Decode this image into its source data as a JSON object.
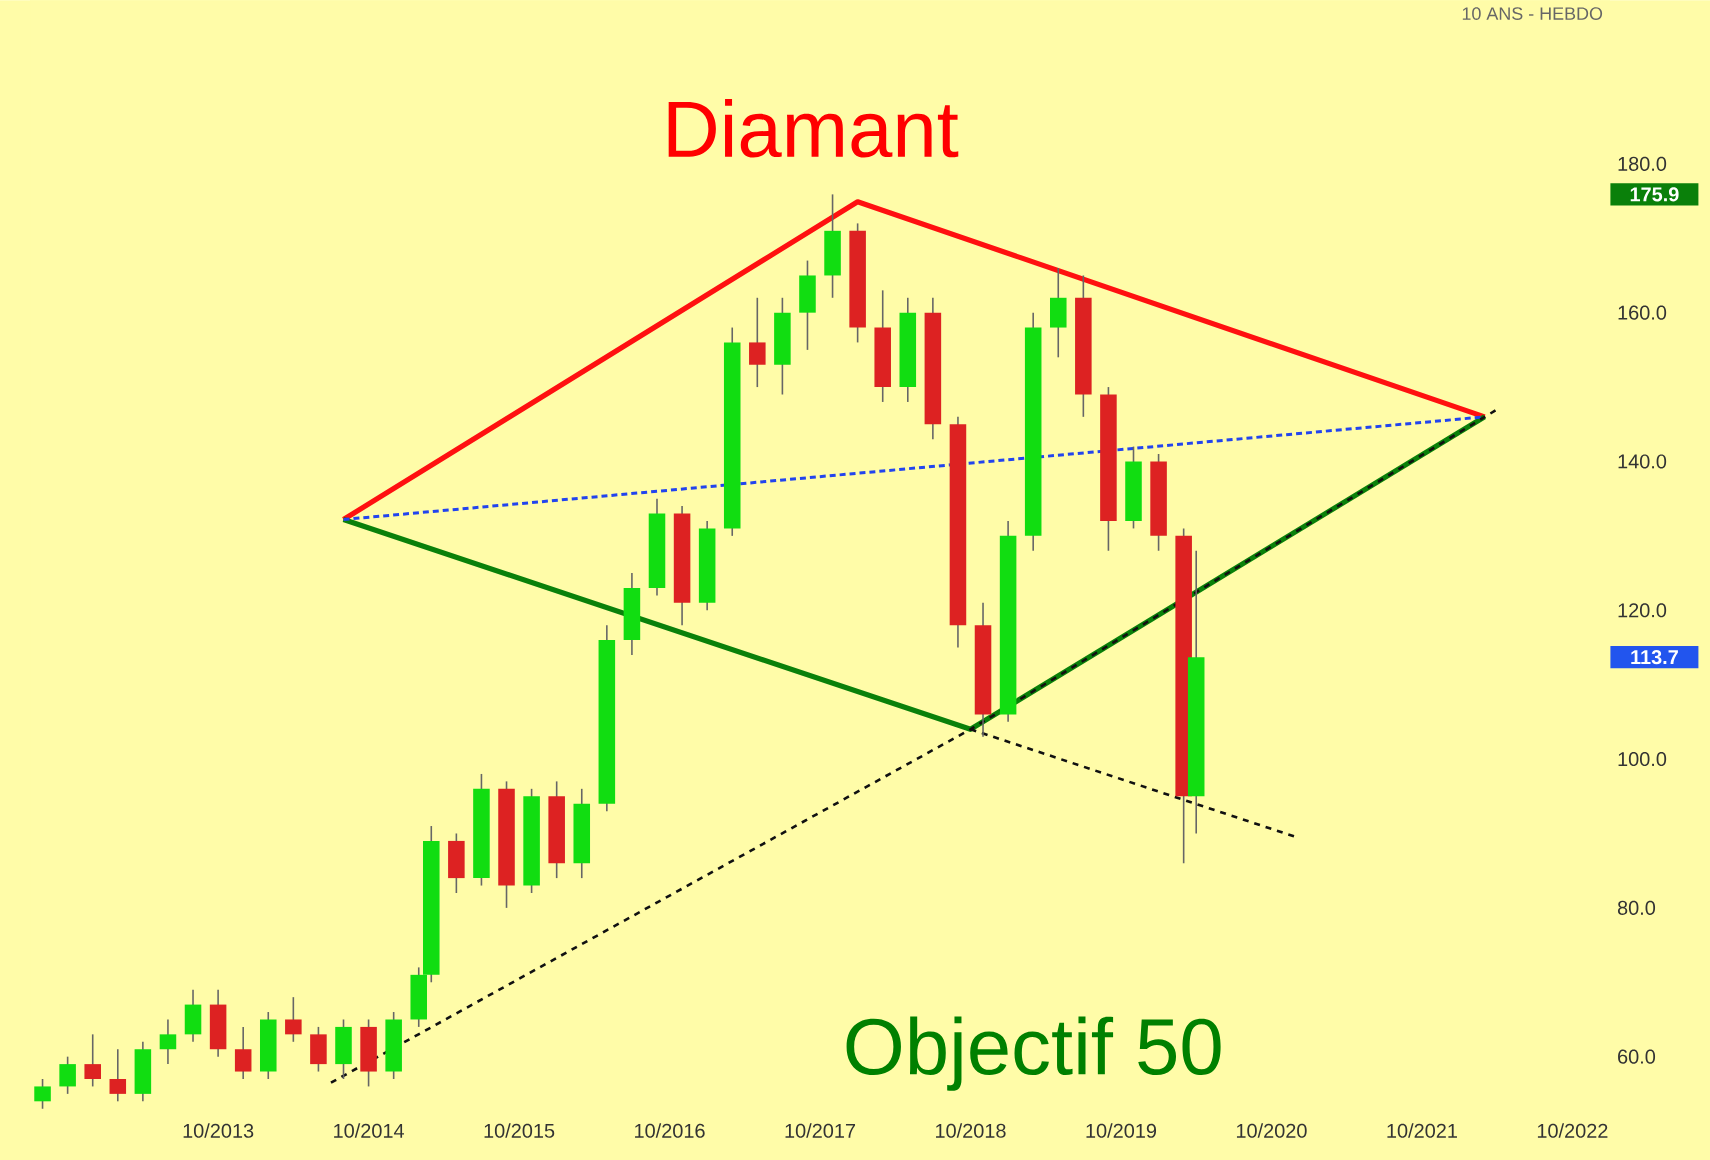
{
  "chart_data": {
    "type": "candlestick",
    "title": "Diamant",
    "annotations": [
      "10 ANS - HEBDO",
      "Objectif 50",
      "175.9",
      "113.7"
    ],
    "x": [
      "2012-08",
      "2012-10",
      "2012-12",
      "2013-02",
      "2013-04",
      "2013-06",
      "2013-08",
      "2013-10",
      "2013-12",
      "2014-02",
      "2014-04",
      "2014-06",
      "2014-08",
      "2014-10",
      "2014-12",
      "2015-02",
      "2015-03",
      "2015-05",
      "2015-07",
      "2015-09",
      "2015-11",
      "2016-01",
      "2016-03",
      "2016-05",
      "2016-07",
      "2016-09",
      "2016-11",
      "2017-01",
      "2017-03",
      "2017-05",
      "2017-07",
      "2017-09",
      "2017-11",
      "2018-01",
      "2018-03",
      "2018-05",
      "2018-07",
      "2018-09",
      "2018-11",
      "2019-01",
      "2019-03",
      "2019-05",
      "2019-07",
      "2019-09",
      "2019-11",
      "2020-01",
      "2020-03",
      "2020-04"
    ],
    "ohlc": [
      [
        54,
        57,
        53,
        56
      ],
      [
        56,
        60,
        55,
        59
      ],
      [
        59,
        63,
        56,
        57
      ],
      [
        57,
        61,
        54,
        55
      ],
      [
        55,
        62,
        54,
        61
      ],
      [
        61,
        65,
        59,
        63
      ],
      [
        63,
        69,
        62,
        67
      ],
      [
        67,
        69,
        60,
        61
      ],
      [
        61,
        64,
        57,
        58
      ],
      [
        58,
        66,
        57,
        65
      ],
      [
        65,
        68,
        62,
        63
      ],
      [
        63,
        64,
        58,
        59
      ],
      [
        59,
        65,
        57,
        64
      ],
      [
        64,
        65,
        56,
        58
      ],
      [
        58,
        66,
        57,
        65
      ],
      [
        65,
        72,
        64,
        71
      ],
      [
        71,
        91,
        70,
        89
      ],
      [
        89,
        90,
        82,
        84
      ],
      [
        84,
        98,
        83,
        96
      ],
      [
        96,
        97,
        80,
        83
      ],
      [
        83,
        96,
        82,
        95
      ],
      [
        95,
        97,
        84,
        86
      ],
      [
        86,
        96,
        84,
        94
      ],
      [
        94,
        118,
        93,
        116
      ],
      [
        116,
        125,
        114,
        123
      ],
      [
        123,
        135,
        122,
        133
      ],
      [
        133,
        134,
        118,
        121
      ],
      [
        121,
        132,
        120,
        131
      ],
      [
        131,
        158,
        130,
        156
      ],
      [
        156,
        162,
        150,
        153
      ],
      [
        153,
        162,
        149,
        160
      ],
      [
        160,
        167,
        155,
        165
      ],
      [
        165,
        175.9,
        162,
        171
      ],
      [
        171,
        172,
        156,
        158
      ],
      [
        158,
        163,
        148,
        150
      ],
      [
        150,
        162,
        148,
        160
      ],
      [
        160,
        162,
        143,
        145
      ],
      [
        145,
        146,
        115,
        118
      ],
      [
        118,
        121,
        103,
        106
      ],
      [
        106,
        132,
        105,
        130
      ],
      [
        130,
        160,
        128,
        158
      ],
      [
        158,
        166,
        154,
        162
      ],
      [
        162,
        165,
        146,
        149
      ],
      [
        149,
        150,
        128,
        132
      ],
      [
        132,
        142,
        131,
        140
      ],
      [
        140,
        141,
        128,
        130
      ],
      [
        130,
        131,
        86,
        95
      ],
      [
        95,
        128,
        90,
        113.7
      ]
    ],
    "colors": [
      "#11dd11",
      "#11dd11",
      "#dd2222",
      "#dd2222",
      "#11dd11",
      "#11dd11",
      "#11dd11",
      "#dd2222",
      "#dd2222",
      "#11dd11",
      "#dd2222",
      "#dd2222",
      "#11dd11",
      "#dd2222",
      "#11dd11",
      "#11dd11",
      "#11dd11",
      "#dd2222",
      "#11dd11",
      "#dd2222",
      "#11dd11",
      "#dd2222",
      "#11dd11",
      "#11dd11",
      "#11dd11",
      "#11dd11",
      "#dd2222",
      "#11dd11",
      "#11dd11",
      "#dd2222",
      "#11dd11",
      "#11dd11",
      "#11dd11",
      "#dd2222",
      "#dd2222",
      "#11dd11",
      "#dd2222",
      "#dd2222",
      "#dd2222",
      "#11dd11",
      "#11dd11",
      "#11dd11",
      "#dd2222",
      "#dd2222",
      "#11dd11",
      "#dd2222",
      "#dd2222",
      "#11dd11"
    ],
    "series": [
      {
        "type": "line",
        "color": "#ff1010",
        "line_style": "solid",
        "x": [
          "2014-08",
          "2018-01",
          "2022-03"
        ],
        "values": [
          132.2,
          174.9,
          146
        ]
      },
      {
        "type": "line",
        "color": "#0a800a",
        "line_style": "solid",
        "x": [
          "2014-08",
          "2018-10",
          "2022-03"
        ],
        "values": [
          132.2,
          104,
          146
        ]
      },
      {
        "type": "line",
        "color": "#2244ee",
        "line_style": "dotted",
        "x": [
          "2014-08",
          "2022-03"
        ],
        "values": [
          132.2,
          146
        ]
      },
      {
        "type": "line",
        "color": "#111111",
        "line_style": "dashed",
        "x": [
          "2014-07",
          "2018-10",
          "2022-04"
        ],
        "values": [
          56.5,
          104,
          147
        ]
      },
      {
        "type": "line",
        "color": "#111111",
        "line_style": "dashed",
        "x": [
          "2018-10",
          "2020-12"
        ],
        "values": [
          104,
          89.5
        ]
      }
    ],
    "xlim": [
      "2012-07",
      "2023-01"
    ],
    "ylim": [
      52,
      202
    ],
    "xticks": [
      {
        "value": "2013-10",
        "label": "10/2013"
      },
      {
        "value": "2014-10",
        "label": "10/2014"
      },
      {
        "value": "2015-10",
        "label": "10/2015"
      },
      {
        "value": "2016-10",
        "label": "10/2016"
      },
      {
        "value": "2017-10",
        "label": "10/2017"
      },
      {
        "value": "2018-10",
        "label": "10/2018"
      },
      {
        "value": "2019-10",
        "label": "10/2019"
      },
      {
        "value": "2020-10",
        "label": "10/2020"
      },
      {
        "value": "2021-10",
        "label": "10/2021"
      },
      {
        "value": "2022-10",
        "label": "10/2022"
      }
    ],
    "yticks": [
      {
        "value": 60,
        "label": "60.0"
      },
      {
        "value": 80,
        "label": "80.0"
      },
      {
        "value": 100,
        "label": "100.0"
      },
      {
        "value": 120,
        "label": "120.0"
      },
      {
        "value": 140,
        "label": "140.0"
      },
      {
        "value": 160,
        "label": "160.0"
      },
      {
        "value": 180,
        "label": "180.0"
      }
    ],
    "grid": false
  }
}
